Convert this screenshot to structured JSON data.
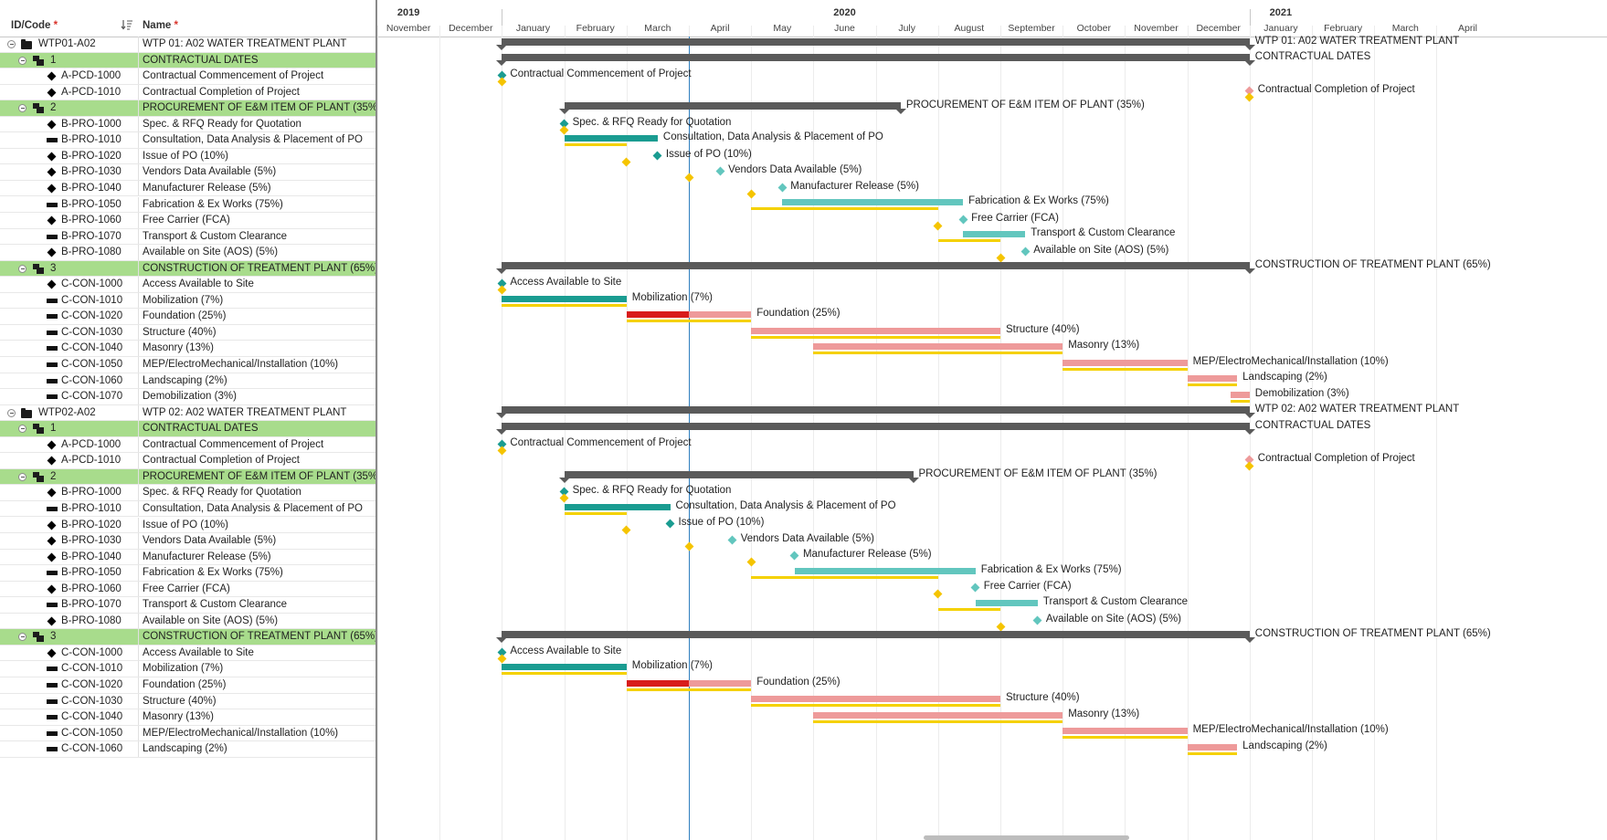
{
  "header": {
    "id_code": "ID/Code",
    "name": "Name",
    "required_mark": "*"
  },
  "timescale": {
    "years": [
      {
        "label": "2019",
        "m": 0.5
      },
      {
        "label": "2020",
        "m": 7.5
      },
      {
        "label": "2021",
        "m": 14.5
      }
    ],
    "months": [
      "November",
      "December",
      "January",
      "February",
      "March",
      "April",
      "May",
      "June",
      "July",
      "August",
      "September",
      "October",
      "November",
      "December",
      "January",
      "February",
      "March",
      "April"
    ],
    "today_m": 5.0
  },
  "colors": {
    "project": "#5ba3dc",
    "wbs": "#a8dc8c",
    "summary": "#5a5a5a",
    "teal": "#1a9c91",
    "teal_light": "#62c6be",
    "pink": "#ee9a9a",
    "red": "#d81c1c",
    "baseline": "#f5d100",
    "milestone_base": "#f5c400"
  },
  "rows": [
    {
      "type": "project",
      "code": "WTP01-A02",
      "name": "WTP 01: A02 WATER TREATMENT PLANT",
      "s": 2,
      "f": 14,
      "label": "WTP 01: A02 WATER TREATMENT PLANT"
    },
    {
      "type": "wbs",
      "code": "1",
      "name": "CONTRACTUAL DATES",
      "s": 2,
      "f": 14,
      "label": "CONTRACTUAL DATES"
    },
    {
      "type": "milestone",
      "code": "A-PCD-1000",
      "name": "Contractual Commencement of Project",
      "s": 2,
      "color": "teal",
      "base_ms": 2,
      "label": "Contractual Commencement of Project"
    },
    {
      "type": "milestone",
      "code": "A-PCD-1010",
      "name": "Contractual Completion of Project",
      "s": 14,
      "color": "pink",
      "base_ms": 14,
      "label": "Contractual Completion of Project"
    },
    {
      "type": "wbs",
      "code": "2",
      "name": "PROCUREMENT OF E&M ITEM OF PLANT (35%)",
      "s": 3,
      "f": 8.4,
      "label": "PROCUREMENT OF E&M ITEM OF PLANT (35%)"
    },
    {
      "type": "milestone",
      "code": "B-PRO-1000",
      "name": "Spec. & RFQ Ready for Quotation",
      "s": 3,
      "color": "teal",
      "base_ms": 3,
      "label": "Spec. & RFQ Ready for Quotation"
    },
    {
      "type": "task",
      "code": "B-PRO-1010",
      "name": "Consultation, Data Analysis & Placement of PO",
      "bars": [
        {
          "s": 3,
          "f": 4.5,
          "color": "teal"
        }
      ],
      "base": [
        3,
        4
      ],
      "label": "Consultation, Data Analysis & Placement of PO"
    },
    {
      "type": "milestone",
      "code": "B-PRO-1020",
      "name": "Issue of PO (10%)",
      "s": 4.5,
      "color": "teal",
      "base_ms": 4,
      "label": "Issue of PO (10%)"
    },
    {
      "type": "milestone",
      "code": "B-PRO-1030",
      "name": "Vendors Data Available (5%)",
      "s": 5.5,
      "color": "teal_light",
      "base_ms": 5,
      "label": "Vendors Data Available (5%)"
    },
    {
      "type": "milestone",
      "code": "B-PRO-1040",
      "name": "Manufacturer Release (5%)",
      "s": 6.5,
      "color": "teal_light",
      "base_ms": 6,
      "label": "Manufacturer Release (5%)"
    },
    {
      "type": "task",
      "code": "B-PRO-1050",
      "name": "Fabrication & Ex Works (75%)",
      "bars": [
        {
          "s": 6.5,
          "f": 9.4,
          "color": "teal_light"
        }
      ],
      "base": [
        6,
        9
      ],
      "label": "Fabrication & Ex Works (75%)"
    },
    {
      "type": "milestone",
      "code": "B-PRO-1060",
      "name": "Free Carrier (FCA)",
      "s": 9.4,
      "color": "teal_light",
      "base_ms": 9,
      "label": "Free Carrier (FCA)"
    },
    {
      "type": "task",
      "code": "B-PRO-1070",
      "name": "Transport & Custom Clearance",
      "bars": [
        {
          "s": 9.4,
          "f": 10.4,
          "color": "teal_light"
        }
      ],
      "base": [
        9,
        10
      ],
      "label": "Transport & Custom Clearance"
    },
    {
      "type": "milestone",
      "code": "B-PRO-1080",
      "name": "Available on Site (AOS) (5%)",
      "s": 10.4,
      "color": "teal_light",
      "base_ms": 10,
      "label": "Available on Site (AOS) (5%)"
    },
    {
      "type": "wbs",
      "code": "3",
      "name": "CONSTRUCTION OF TREATMENT PLANT (65%)",
      "s": 2,
      "f": 14,
      "label": "CONSTRUCTION OF TREATMENT PLANT (65%)"
    },
    {
      "type": "milestone",
      "code": "C-CON-1000",
      "name": "Access Available to Site",
      "s": 2,
      "color": "teal",
      "base_ms": 2,
      "label": "Access Available to Site"
    },
    {
      "type": "task",
      "code": "C-CON-1010",
      "name": "Mobilization (7%)",
      "bars": [
        {
          "s": 2,
          "f": 4,
          "color": "teal"
        }
      ],
      "base": [
        2,
        4
      ],
      "label": "Mobilization (7%)"
    },
    {
      "type": "task",
      "code": "C-CON-1020",
      "name": "Foundation (25%)",
      "bars": [
        {
          "s": 4,
          "f": 5,
          "color": "red"
        },
        {
          "s": 5,
          "f": 6,
          "color": "pink"
        }
      ],
      "base": [
        4,
        6
      ],
      "label": "Foundation (25%)"
    },
    {
      "type": "task",
      "code": "C-CON-1030",
      "name": "Structure (40%)",
      "bars": [
        {
          "s": 6,
          "f": 10,
          "color": "pink"
        }
      ],
      "base": [
        6,
        10
      ],
      "label": "Structure (40%)"
    },
    {
      "type": "task",
      "code": "C-CON-1040",
      "name": "Masonry (13%)",
      "bars": [
        {
          "s": 7,
          "f": 11,
          "color": "pink"
        }
      ],
      "base": [
        7,
        11
      ],
      "label": "Masonry (13%)"
    },
    {
      "type": "task",
      "code": "C-CON-1050",
      "name": "MEP/ElectroMechanical/Installation (10%)",
      "bars": [
        {
          "s": 11,
          "f": 13,
          "color": "pink"
        }
      ],
      "base": [
        11,
        13
      ],
      "label": "MEP/ElectroMechanical/Installation (10%)"
    },
    {
      "type": "task",
      "code": "C-CON-1060",
      "name": "Landscaping (2%)",
      "bars": [
        {
          "s": 13,
          "f": 13.8,
          "color": "pink"
        }
      ],
      "base": [
        13,
        13.8
      ],
      "label": "Landscaping (2%)"
    },
    {
      "type": "task",
      "code": "C-CON-1070",
      "name": "Demobilization (3%)",
      "bars": [
        {
          "s": 13.7,
          "f": 14,
          "color": "pink"
        }
      ],
      "base": [
        13.7,
        14
      ],
      "label": "Demobilization (3%)"
    },
    {
      "type": "project",
      "code": "WTP02-A02",
      "name": "WTP 02: A02 WATER TREATMENT PLANT",
      "s": 2,
      "f": 14,
      "label": "WTP 02: A02 WATER TREATMENT PLANT"
    },
    {
      "type": "wbs",
      "code": "1",
      "name": "CONTRACTUAL DATES",
      "s": 2,
      "f": 14,
      "label": "CONTRACTUAL DATES"
    },
    {
      "type": "milestone",
      "code": "A-PCD-1000",
      "name": "Contractual Commencement of Project",
      "s": 2,
      "color": "teal",
      "base_ms": 2,
      "label": "Contractual Commencement of Project"
    },
    {
      "type": "milestone",
      "code": "A-PCD-1010",
      "name": "Contractual Completion of Project",
      "s": 14,
      "color": "pink",
      "base_ms": 14,
      "label": "Contractual Completion of Project"
    },
    {
      "type": "wbs",
      "code": "2",
      "name": "PROCUREMENT OF E&M ITEM OF PLANT (35%)",
      "s": 3,
      "f": 8.6,
      "label": "PROCUREMENT OF E&M ITEM OF PLANT (35%)"
    },
    {
      "type": "milestone",
      "code": "B-PRO-1000",
      "name": "Spec. & RFQ Ready for Quotation",
      "s": 3,
      "color": "teal",
      "base_ms": 3,
      "label": "Spec. & RFQ Ready for Quotation"
    },
    {
      "type": "task",
      "code": "B-PRO-1010",
      "name": "Consultation, Data Analysis & Placement of PO",
      "bars": [
        {
          "s": 3,
          "f": 4.7,
          "color": "teal"
        }
      ],
      "base": [
        3,
        4
      ],
      "label": "Consultation, Data Analysis & Placement of PO"
    },
    {
      "type": "milestone",
      "code": "B-PRO-1020",
      "name": "Issue of PO (10%)",
      "s": 4.7,
      "color": "teal",
      "base_ms": 4,
      "label": "Issue of PO (10%)"
    },
    {
      "type": "milestone",
      "code": "B-PRO-1030",
      "name": "Vendors Data Available (5%)",
      "s": 5.7,
      "color": "teal_light",
      "base_ms": 5,
      "label": "Vendors Data Available (5%)"
    },
    {
      "type": "milestone",
      "code": "B-PRO-1040",
      "name": "Manufacturer Release (5%)",
      "s": 6.7,
      "color": "teal_light",
      "base_ms": 6,
      "label": "Manufacturer Release (5%)"
    },
    {
      "type": "task",
      "code": "B-PRO-1050",
      "name": "Fabrication & Ex Works (75%)",
      "bars": [
        {
          "s": 6.7,
          "f": 9.6,
          "color": "teal_light"
        }
      ],
      "base": [
        6,
        9
      ],
      "label": "Fabrication & Ex Works (75%)"
    },
    {
      "type": "milestone",
      "code": "B-PRO-1060",
      "name": "Free Carrier (FCA)",
      "s": 9.6,
      "color": "teal_light",
      "base_ms": 9,
      "label": "Free Carrier (FCA)"
    },
    {
      "type": "task",
      "code": "B-PRO-1070",
      "name": "Transport & Custom Clearance",
      "bars": [
        {
          "s": 9.6,
          "f": 10.6,
          "color": "teal_light"
        }
      ],
      "base": [
        9,
        10
      ],
      "label": "Transport & Custom Clearance"
    },
    {
      "type": "milestone",
      "code": "B-PRO-1080",
      "name": "Available on Site (AOS) (5%)",
      "s": 10.6,
      "color": "teal_light",
      "base_ms": 10,
      "label": "Available on Site (AOS) (5%)"
    },
    {
      "type": "wbs",
      "code": "3",
      "name": "CONSTRUCTION OF TREATMENT PLANT (65%)",
      "s": 2,
      "f": 14,
      "label": "CONSTRUCTION OF TREATMENT PLANT (65%)"
    },
    {
      "type": "milestone",
      "code": "C-CON-1000",
      "name": "Access Available to Site",
      "s": 2,
      "color": "teal",
      "base_ms": 2,
      "label": "Access Available to Site"
    },
    {
      "type": "task",
      "code": "C-CON-1010",
      "name": "Mobilization (7%)",
      "bars": [
        {
          "s": 2,
          "f": 4,
          "color": "teal"
        }
      ],
      "base": [
        2,
        4
      ],
      "label": "Mobilization (7%)"
    },
    {
      "type": "task",
      "code": "C-CON-1020",
      "name": "Foundation (25%)",
      "bars": [
        {
          "s": 4,
          "f": 5,
          "color": "red"
        },
        {
          "s": 5,
          "f": 6,
          "color": "pink"
        }
      ],
      "base": [
        4,
        6
      ],
      "label": "Foundation (25%)"
    },
    {
      "type": "task",
      "code": "C-CON-1030",
      "name": "Structure (40%)",
      "bars": [
        {
          "s": 6,
          "f": 10,
          "color": "pink"
        }
      ],
      "base": [
        6,
        10
      ],
      "label": "Structure (40%)"
    },
    {
      "type": "task",
      "code": "C-CON-1040",
      "name": "Masonry (13%)",
      "bars": [
        {
          "s": 7,
          "f": 11,
          "color": "pink"
        }
      ],
      "base": [
        7,
        11
      ],
      "label": "Masonry (13%)"
    },
    {
      "type": "task",
      "code": "C-CON-1050",
      "name": "MEP/ElectroMechanical/Installation (10%)",
      "bars": [
        {
          "s": 11,
          "f": 13,
          "color": "pink"
        }
      ],
      "base": [
        11,
        13
      ],
      "label": "MEP/ElectroMechanical/Installation (10%)"
    },
    {
      "type": "task",
      "code": "C-CON-1060",
      "name": "Landscaping (2%)",
      "bars": [
        {
          "s": 13,
          "f": 13.8,
          "color": "pink"
        }
      ],
      "base": [
        13,
        13.8
      ],
      "label": "Landscaping (2%)"
    }
  ]
}
